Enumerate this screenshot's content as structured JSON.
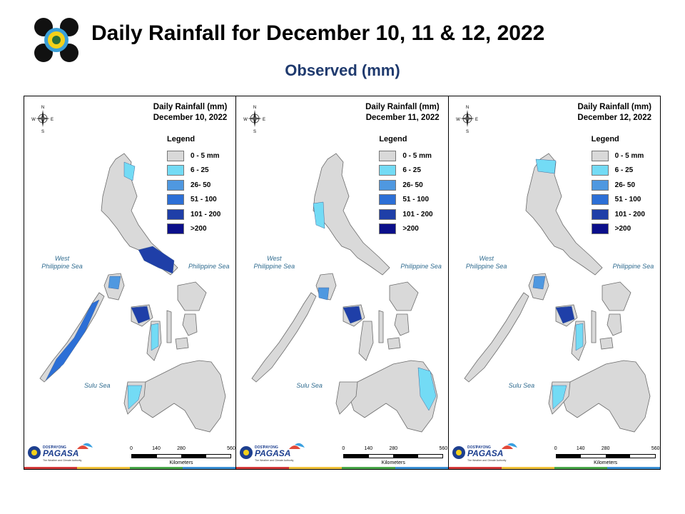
{
  "header": {
    "title": "Daily Rainfall for December 10, 11 & 12, 2022",
    "subtitle": "Observed (mm)"
  },
  "legend": {
    "title": "Legend",
    "items": [
      {
        "label": "0 - 5 mm",
        "color": "#d9d9d9"
      },
      {
        "label": "6 - 25",
        "color": "#73dbf5"
      },
      {
        "label": "26- 50",
        "color": "#4f98e0"
      },
      {
        "label": "51 - 100",
        "color": "#2c6fd6"
      },
      {
        "label": "101 - 200",
        "color": "#1f3fa8"
      },
      {
        "label": ">200",
        "color": "#0b0f8a"
      }
    ]
  },
  "panels": [
    {
      "title_line1": "Daily Rainfall (mm)",
      "title_line2": "December 10, 2022",
      "highlight_regions": [
        "northeast-luzon",
        "bicol",
        "mindoro",
        "palawan",
        "panay",
        "negros",
        "zamboanga"
      ]
    },
    {
      "title_line1": "Daily Rainfall (mm)",
      "title_line2": "December 11, 2022",
      "highlight_regions": [
        "west-luzon",
        "mindoro-south",
        "panay",
        "eastern-mindanao"
      ]
    },
    {
      "title_line1": "Daily Rainfall (mm)",
      "title_line2": "December 12, 2022",
      "highlight_regions": [
        "north-luzon",
        "mindoro",
        "panay",
        "negros",
        "zamboanga"
      ]
    }
  ],
  "sea_labels": {
    "west": "West\nPhilippine Sea",
    "east": "Philippine Sea",
    "south": "Sulu Sea"
  },
  "compass": {
    "n": "N",
    "s": "S",
    "e": "E",
    "w": "W"
  },
  "scale": {
    "ticks": [
      "0",
      "140",
      "280",
      "560"
    ],
    "unit": "Kilometers"
  },
  "agency": {
    "name": "PAGASA",
    "tag": "The Weather and Climate Authority",
    "prefix": "DOST",
    "brand": "PAYONG"
  },
  "colors": {
    "land": "#d9d9d9",
    "border": "#6b6b6b",
    "strip": [
      "#d43a3a",
      "#f0c23b",
      "#4aa84a",
      "#3a8fd4"
    ]
  }
}
